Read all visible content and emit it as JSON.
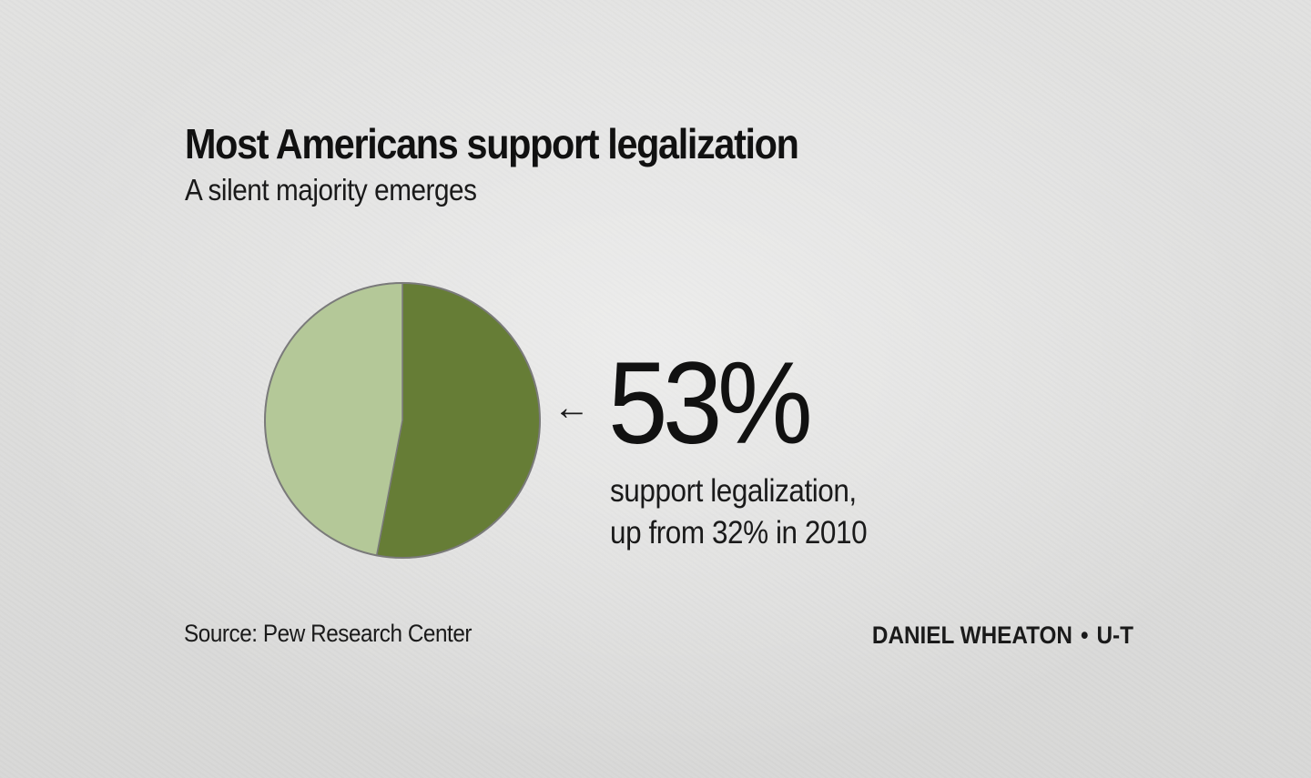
{
  "header": {
    "title": "Most Americans support legalization",
    "subtitle": "A silent majority emerges"
  },
  "callout": {
    "arrow": "←",
    "value": "53%",
    "line1": "support legalization,",
    "line2": "up from 32% in 2010"
  },
  "footer": {
    "source": "Source: Pew Research Center",
    "credit_name": "DANIEL WHEATON",
    "credit_separator": "•",
    "credit_org": "U-T"
  },
  "colors": {
    "support": "#667d36",
    "other": "#b4c898",
    "outline": "#7a7a7a"
  },
  "chart_data": {
    "type": "pie",
    "title": "Most Americans support legalization",
    "subtitle": "A silent majority emerges",
    "slices": [
      {
        "label": "support legalization",
        "value": 53,
        "color": "#667d36"
      },
      {
        "label": "",
        "value": 47,
        "color": "#b4c898"
      }
    ],
    "start": "12 o'clock, clockwise",
    "legend": "none"
  }
}
